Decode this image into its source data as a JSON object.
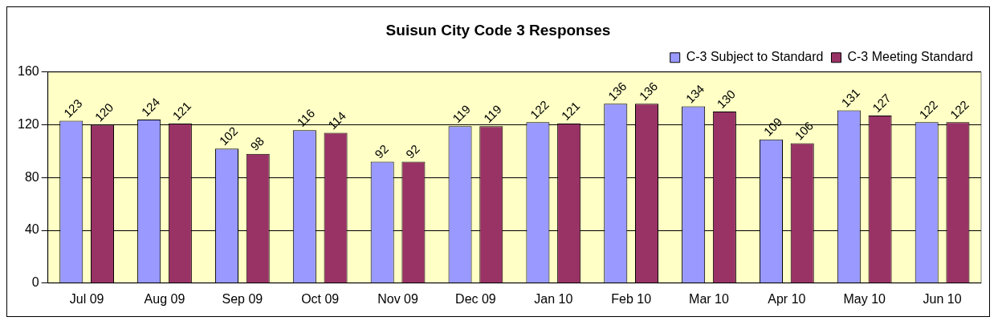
{
  "chart_data": {
    "type": "bar",
    "title": "Suisun City Code 3 Responses",
    "categories": [
      "Jul 09",
      "Aug 09",
      "Sep 09",
      "Oct 09",
      "Nov 09",
      "Dec 09",
      "Jan 10",
      "Feb 10",
      "Mar 10",
      "Apr 10",
      "May 10",
      "Jun 10"
    ],
    "series": [
      {
        "name": "C-3 Subject to Standard",
        "color": "#9999ff",
        "values": [
          123,
          124,
          102,
          116,
          92,
          119,
          122,
          136,
          134,
          109,
          131,
          122
        ]
      },
      {
        "name": "C-3 Meeting Standard",
        "color": "#993366",
        "values": [
          120,
          121,
          98,
          114,
          92,
          119,
          121,
          136,
          130,
          106,
          127,
          122
        ]
      }
    ],
    "ylim": [
      0,
      160
    ],
    "yticks": [
      0,
      40,
      80,
      120,
      160
    ],
    "grid": "y",
    "legend": "top right",
    "data_labels": true
  }
}
